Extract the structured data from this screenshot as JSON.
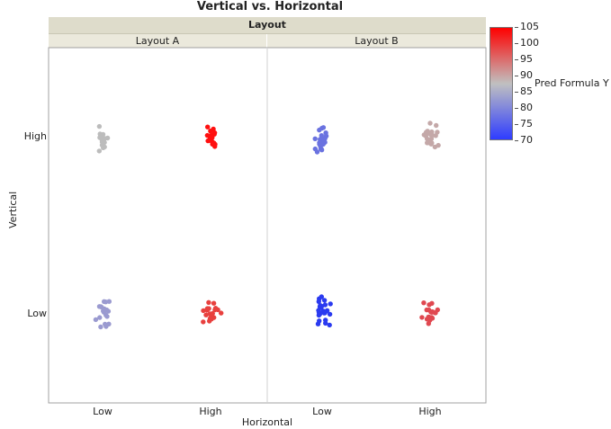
{
  "chart_data": {
    "type": "scatter",
    "title": "Vertical vs. Horizontal",
    "group_header": "Layout",
    "panels": [
      "Layout A",
      "Layout B"
    ],
    "xlabel": "Horizontal",
    "ylabel": "Vertical",
    "x_categories": [
      "Low",
      "High"
    ],
    "y_categories": [
      "Low",
      "High"
    ],
    "color_scale": {
      "title": "Pred Formula Y",
      "min": 70,
      "max": 105,
      "ticks": [
        105,
        100,
        95,
        90,
        85,
        80,
        75,
        70
      ],
      "low_color": "#2e3cff",
      "mid_color": "#c0c0c0",
      "high_color": "#ff0000"
    },
    "groups": [
      {
        "panel": "Layout A",
        "x": "Low",
        "y": "High",
        "count": 20,
        "pred_value": 87.5,
        "color": "#bcbcbc"
      },
      {
        "panel": "Layout A",
        "x": "High",
        "y": "High",
        "count": 20,
        "pred_value": 104,
        "color": "#ff1010"
      },
      {
        "panel": "Layout A",
        "x": "Low",
        "y": "Low",
        "count": 20,
        "pred_value": 82,
        "color": "#9a9ad0"
      },
      {
        "panel": "Layout A",
        "x": "High",
        "y": "Low",
        "count": 20,
        "pred_value": 101,
        "color": "#e8403e"
      },
      {
        "panel": "Layout B",
        "x": "Low",
        "y": "High",
        "count": 24,
        "pred_value": 77,
        "color": "#6a72e0"
      },
      {
        "panel": "Layout B",
        "x": "High",
        "y": "High",
        "count": 24,
        "pred_value": 89,
        "color": "#c4a8a8"
      },
      {
        "panel": "Layout B",
        "x": "Low",
        "y": "Low",
        "count": 24,
        "pred_value": 71,
        "color": "#2a3af0"
      },
      {
        "panel": "Layout B",
        "x": "High",
        "y": "Low",
        "count": 24,
        "pred_value": 98,
        "color": "#e04850"
      }
    ]
  }
}
